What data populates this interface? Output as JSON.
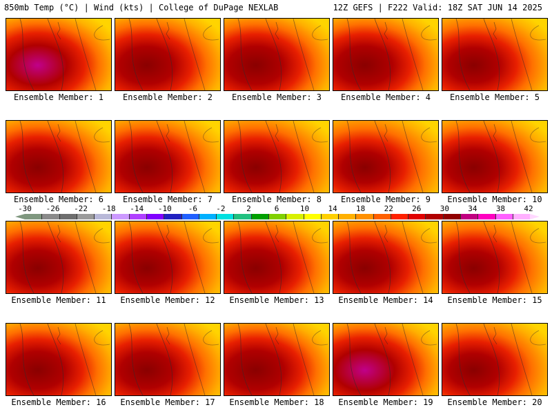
{
  "header": {
    "left": "850mb Temp (°C) | Wind (kts) | College of DuPage NEXLAB",
    "right": "12Z GEFS | F222 Valid: 18Z SAT JUN 14 2025"
  },
  "legend": {
    "labels": [
      "-30",
      "-26",
      "-22",
      "-18",
      "-14",
      "-10",
      "-6",
      "-2",
      "2",
      "6",
      "10",
      "14",
      "18",
      "22",
      "26",
      "30",
      "34",
      "38",
      "42"
    ],
    "colors": [
      "#7f977f",
      "#8a8a8a",
      "#6e6e6e",
      "#9a9a9a",
      "#b8b8d8",
      "#cc99ff",
      "#b040ff",
      "#8000ff",
      "#2020c0",
      "#2060ff",
      "#00b0ff",
      "#00e0e0",
      "#20c080",
      "#00a000",
      "#80d000",
      "#d8f000",
      "#ffff00",
      "#ffd000",
      "#ffb000",
      "#ff9000",
      "#ff6000",
      "#ff2000",
      "#e00000",
      "#b00000",
      "#900000",
      "#c00080",
      "#ff00c0",
      "#ff60ff",
      "#ffb0ff"
    ]
  },
  "panels": [
    {
      "caption": "Ensemble Member: 1",
      "intensity": 0.85
    },
    {
      "caption": "Ensemble Member: 2",
      "intensity": 0.7
    },
    {
      "caption": "Ensemble Member: 3",
      "intensity": 0.72
    },
    {
      "caption": "Ensemble Member: 4",
      "intensity": 0.75
    },
    {
      "caption": "Ensemble Member: 5",
      "intensity": 0.55
    },
    {
      "caption": "Ensemble Member: 6",
      "intensity": 0.65
    },
    {
      "caption": "Ensemble Member: 7",
      "intensity": 0.62
    },
    {
      "caption": "Ensemble Member: 8",
      "intensity": 0.45
    },
    {
      "caption": "Ensemble Member: 9",
      "intensity": 0.35
    },
    {
      "caption": "Ensemble Member: 10",
      "intensity": 0.6
    },
    {
      "caption": "Ensemble Member: 11",
      "intensity": 0.6
    },
    {
      "caption": "Ensemble Member: 12",
      "intensity": 0.55
    },
    {
      "caption": "Ensemble Member: 13",
      "intensity": 0.68
    },
    {
      "caption": "Ensemble Member: 14",
      "intensity": 0.6
    },
    {
      "caption": "Ensemble Member: 15",
      "intensity": 0.5
    },
    {
      "caption": "Ensemble Member: 16",
      "intensity": 0.7
    },
    {
      "caption": "Ensemble Member: 17",
      "intensity": 0.62
    },
    {
      "caption": "Ensemble Member: 18",
      "intensity": 0.8
    },
    {
      "caption": "Ensemble Member: 19",
      "intensity": 0.9
    },
    {
      "caption": "Ensemble Member: 20",
      "intensity": 0.5
    }
  ]
}
